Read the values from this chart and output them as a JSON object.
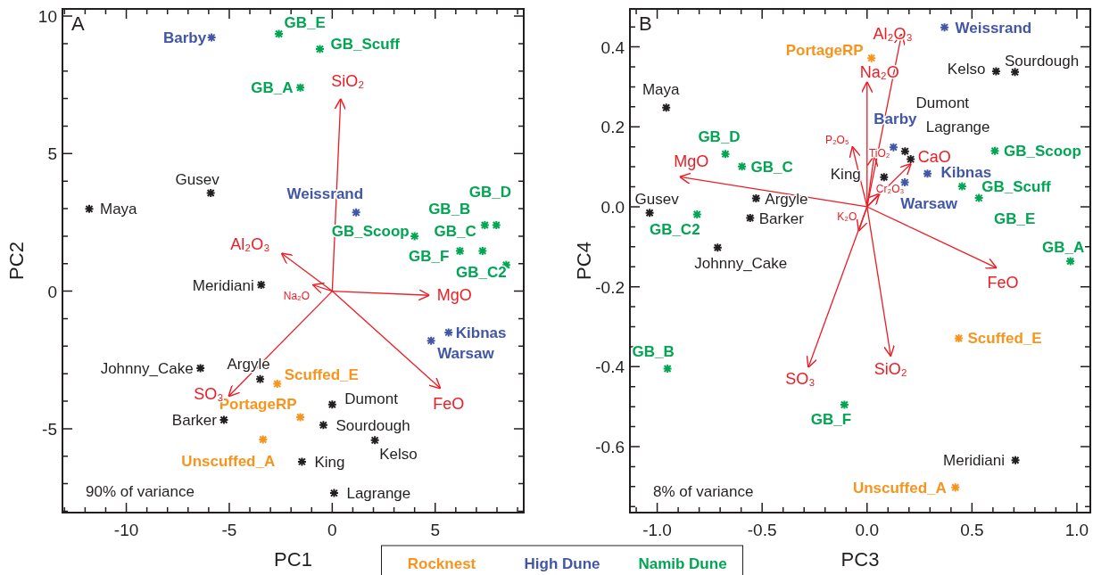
{
  "chart_data": [
    {
      "type": "scatter",
      "xlabel": "PC1",
      "ylabel": "PC2",
      "xlim": [
        -13.1,
        9.3
      ],
      "ylim": [
        -8.05,
        10.26
      ],
      "xticks": [
        -10,
        -5,
        0,
        5,
        {
          "value": -13,
          "label": null
        },
        {
          "value": -12,
          "label": null
        },
        {
          "value": -11,
          "label": null
        },
        {
          "value": -9,
          "label": null
        },
        {
          "value": -8,
          "label": null
        },
        {
          "value": -7,
          "label": null
        },
        {
          "value": -6,
          "label": null
        },
        {
          "value": -4,
          "label": null
        },
        {
          "value": -3,
          "label": null
        },
        {
          "value": -2,
          "label": null
        },
        {
          "value": -1,
          "label": null
        },
        {
          "value": 1,
          "label": null
        },
        {
          "value": 2,
          "label": null
        },
        {
          "value": 3,
          "label": null
        },
        {
          "value": 4,
          "label": null
        },
        {
          "value": 6,
          "label": null
        },
        {
          "value": 7,
          "label": null
        },
        {
          "value": 8,
          "label": null
        },
        {
          "value": 9,
          "label": null
        }
      ],
      "yticks": [
        -5,
        0,
        5,
        10,
        {
          "value": -8,
          "label": null
        },
        {
          "value": -7,
          "label": null
        },
        {
          "value": -6,
          "label": null
        },
        {
          "value": -4,
          "label": null
        },
        {
          "value": -3,
          "label": null
        },
        {
          "value": -2,
          "label": null
        },
        {
          "value": -1,
          "label": null
        },
        {
          "value": 1,
          "label": null
        },
        {
          "value": 2,
          "label": null
        },
        {
          "value": 3,
          "label": null
        },
        {
          "value": 4,
          "label": null
        },
        {
          "value": 6,
          "label": null
        },
        {
          "value": 7,
          "label": null
        },
        {
          "value": 8,
          "label": null
        },
        {
          "value": 9,
          "label": null
        }
      ],
      "annotations": [
        "A",
        "90% of variance"
      ],
      "marker": "cross",
      "legend": "bottom",
      "series": [
        {
          "name": "Rocknest",
          "color": "#f7941d",
          "x": [
            -2.67,
            -1.55,
            -3.36
          ],
          "values": [
            -3.37,
            -4.58,
            -5.39
          ],
          "value_labels": [
            "Scuffed_E",
            "PortageRP",
            "Unscuffed_A"
          ]
        },
        {
          "name": "High Dune",
          "color": "#4156a6",
          "x": [
            -5.86,
            1.16,
            5.65,
            4.8
          ],
          "values": [
            9.22,
            2.86,
            -1.5,
            -1.8
          ],
          "value_labels": [
            "Barby",
            "Weissrand",
            "Kibnas",
            "Warsaw"
          ]
        },
        {
          "name": "Namib Dune",
          "color": "#00a651",
          "x": [
            -2.59,
            -0.6,
            -1.55,
            4.0,
            7.41,
            7.97,
            7.3,
            6.2,
            8.45
          ],
          "values": [
            9.35,
            8.8,
            7.4,
            2.0,
            2.4,
            2.4,
            1.46,
            1.46,
            0.95
          ],
          "value_labels": [
            "GB_E",
            "GB_Scuff",
            "GB_A",
            "GB_Scoop",
            "GB_B",
            "GB_D",
            "GB_C",
            "GB_F",
            "GB_C2"
          ]
        },
        {
          "color": "#231f20",
          "x": [
            -5.9,
            -11.8,
            -3.45,
            -6.4,
            -3.5,
            0,
            -0.43,
            -5.26,
            2.07,
            -1.47,
            0.09
          ],
          "values": [
            3.57,
            2.99,
            0.23,
            -2.8,
            -3.2,
            -4.12,
            -4.87,
            -4.68,
            -5.42,
            -6.2,
            -7.34
          ],
          "value_labels": [
            "Gusev",
            "Maya",
            "Meridiani",
            "Johnny_Cake",
            "Argyle",
            "Dumont",
            "Sourdough",
            "Barker",
            "Kelso",
            "King",
            "Lagrange"
          ]
        },
        {
          "type": "line",
          "marker": "none",
          "name": "SiO₂",
          "color": "#ed1c24",
          "x": [
            0,
            0.41
          ],
          "values": [
            0,
            7.0
          ]
        },
        {
          "type": "line",
          "marker": "none",
          "name": "Al₂O₃",
          "color": "#ed1c24",
          "x": [
            0,
            -2.47
          ],
          "values": [
            0,
            1.38
          ]
        },
        {
          "type": "line",
          "marker": "none",
          "name": "Na₂O",
          "color": "#ed1c24",
          "x": [
            0,
            -0.95
          ],
          "values": [
            0,
            0.23
          ]
        },
        {
          "type": "line",
          "marker": "none",
          "name": "MgO",
          "color": "#ed1c24",
          "x": [
            0,
            4.72
          ],
          "values": [
            0,
            -0.15
          ]
        },
        {
          "type": "line",
          "marker": "none",
          "name": "FeO",
          "color": "#ed1c24",
          "x": [
            0,
            5.26
          ],
          "values": [
            0,
            -3.54
          ]
        },
        {
          "type": "line",
          "marker": "none",
          "name": "SO₃",
          "color": "#ed1c24",
          "x": [
            0,
            -5.04
          ],
          "values": [
            0,
            -3.83
          ]
        }
      ]
    },
    {
      "type": "scatter",
      "xlabel": "PC3",
      "ylabel": "PC4",
      "xlim": [
        -1.13,
        1.064
      ],
      "ylim": [
        -0.765,
        0.495
      ],
      "xticks": [
        {
          "value": -1,
          "label": "-1.0"
        },
        -0.5,
        {
          "value": 0,
          "label": "0.0"
        },
        0.5,
        {
          "value": 1,
          "label": "1.0"
        },
        {
          "value": -1.1,
          "label": null
        },
        {
          "value": -0.9,
          "label": null
        },
        {
          "value": -0.8,
          "label": null
        },
        {
          "value": -0.7,
          "label": null
        },
        {
          "value": -0.6,
          "label": null
        },
        {
          "value": -0.4,
          "label": null
        },
        {
          "value": -0.3,
          "label": null
        },
        {
          "value": -0.2,
          "label": null
        },
        {
          "value": -0.1,
          "label": null
        },
        {
          "value": 0.1,
          "label": null
        },
        {
          "value": 0.2,
          "label": null
        },
        {
          "value": 0.3,
          "label": null
        },
        {
          "value": 0.4,
          "label": null
        },
        {
          "value": 0.6,
          "label": null
        },
        {
          "value": 0.7,
          "label": null
        },
        {
          "value": 0.8,
          "label": null
        },
        {
          "value": 0.9,
          "label": null
        }
      ],
      "yticks": [
        -0.6,
        -0.4,
        -0.2,
        {
          "value": 0,
          "label": "0.0"
        },
        0.2,
        0.4,
        {
          "value": 0.45,
          "label": null
        },
        {
          "value": 0.35,
          "label": null
        },
        {
          "value": 0.3,
          "label": null
        },
        {
          "value": 0.25,
          "label": null
        },
        {
          "value": 0.15,
          "label": null
        },
        {
          "value": 0.1,
          "label": null
        },
        {
          "value": 0.05,
          "label": null
        },
        {
          "value": -0.05,
          "label": null
        },
        {
          "value": -0.1,
          "label": null
        },
        {
          "value": -0.15,
          "label": null
        },
        {
          "value": -0.25,
          "label": null
        },
        {
          "value": -0.3,
          "label": null
        },
        {
          "value": -0.35,
          "label": null
        },
        {
          "value": -0.45,
          "label": null
        },
        {
          "value": -0.5,
          "label": null
        },
        {
          "value": -0.55,
          "label": null
        },
        {
          "value": -0.65,
          "label": null
        },
        {
          "value": -0.7,
          "label": null
        },
        {
          "value": -0.75,
          "label": null
        }
      ],
      "annotations": [
        "B",
        "8% of variance"
      ],
      "marker": "cross",
      "series": [
        {
          "color": "#f7941d",
          "x": [
            0.021,
            0.437,
            0.421
          ],
          "values": [
            0.372,
            -0.329,
            -0.702
          ],
          "value_labels": [
            "PortageRP",
            "Scuffed_E",
            "Unscuffed_A"
          ]
        },
        {
          "color": "#4156a6",
          "x": [
            0.369,
            0.126,
            0.288,
            0.18
          ],
          "values": [
            0.449,
            0.149,
            0.083,
            0.061
          ],
          "value_labels": [
            "Weissrand",
            "Barby",
            "Kibnas",
            "Warsaw"
          ]
        },
        {
          "color": "#00a651",
          "x": [
            -0.675,
            -0.596,
            -0.81,
            -0.951,
            -0.108,
            0.609,
            0.453,
            0.533,
            0.969
          ],
          "values": [
            0.132,
            0.101,
            -0.019,
            -0.405,
            -0.495,
            0.14,
            0.051,
            0.022,
            -0.136
          ],
          "value_labels": [
            "GB_D",
            "GB_C",
            "GB_C2",
            "GB_B",
            "GB_F",
            "GB_Scoop",
            "GB_Scuff",
            "GB_E",
            "GB_A"
          ]
        },
        {
          "color": "#231f20",
          "x": [
            -0.957,
            -0.529,
            -1.036,
            -0.557,
            -0.712,
            0.615,
            0.705,
            0.181,
            0.208,
            0.081,
            0.707
          ],
          "values": [
            0.248,
            0.021,
            -0.015,
            -0.028,
            -0.102,
            0.339,
            0.337,
            0.139,
            0.119,
            0.074,
            -0.634
          ],
          "value_labels": [
            "Maya",
            "Argyle",
            "Gusev",
            "Barker",
            "Johnny_Cake",
            "Kelso",
            "Sourdough",
            "Dumont",
            "Lagrange",
            "King",
            "Meridiani"
          ]
        },
        {
          "type": "line",
          "marker": "none",
          "name": "MgO",
          "color": "#ed1c24",
          "x": [
            0,
            -0.893
          ],
          "values": [
            0,
            0.075
          ]
        },
        {
          "type": "line",
          "marker": "none",
          "name": "Na₂O",
          "color": "#ed1c24",
          "x": [
            0,
            0
          ],
          "values": [
            0,
            0.313
          ]
        },
        {
          "type": "line",
          "marker": "none",
          "name": "Al₂O₃",
          "color": "#ed1c24",
          "x": [
            0,
            0.165
          ],
          "values": [
            0,
            0.433
          ]
        },
        {
          "type": "line",
          "marker": "none",
          "name": "P₂O₅",
          "color": "#ed1c24",
          "x": [
            0,
            -0.07
          ],
          "values": [
            0,
            0.151
          ]
        },
        {
          "type": "line",
          "marker": "none",
          "name": "TiO₂",
          "color": "#ed1c24",
          "x": [
            0,
            0.034
          ],
          "values": [
            0,
            0.128
          ]
        },
        {
          "type": "line",
          "marker": "none",
          "name": "Cr₂O₃",
          "color": "#ed1c24",
          "x": [
            0,
            0.059
          ],
          "values": [
            0,
            0.033
          ]
        },
        {
          "type": "line",
          "marker": "none",
          "name": "CaO",
          "color": "#ed1c24",
          "x": [
            0,
            0.21
          ],
          "values": [
            0,
            0.108
          ]
        },
        {
          "type": "line",
          "marker": "none",
          "name": "K₂O",
          "color": "#ed1c24",
          "x": [
            0,
            -0.04
          ],
          "values": [
            0,
            -0.061
          ]
        },
        {
          "type": "line",
          "marker": "none",
          "name": "FeO",
          "color": "#ed1c24",
          "x": [
            0,
            0.618
          ],
          "values": [
            0,
            -0.153
          ]
        },
        {
          "type": "line",
          "marker": "none",
          "name": "SiO₂",
          "color": "#ed1c24",
          "x": [
            0,
            0.113
          ],
          "values": [
            0,
            -0.374
          ]
        },
        {
          "type": "line",
          "marker": "none",
          "name": "SO₃",
          "color": "#ed1c24",
          "x": [
            0,
            -0.28
          ],
          "values": [
            0,
            -0.402
          ]
        }
      ]
    }
  ]
}
